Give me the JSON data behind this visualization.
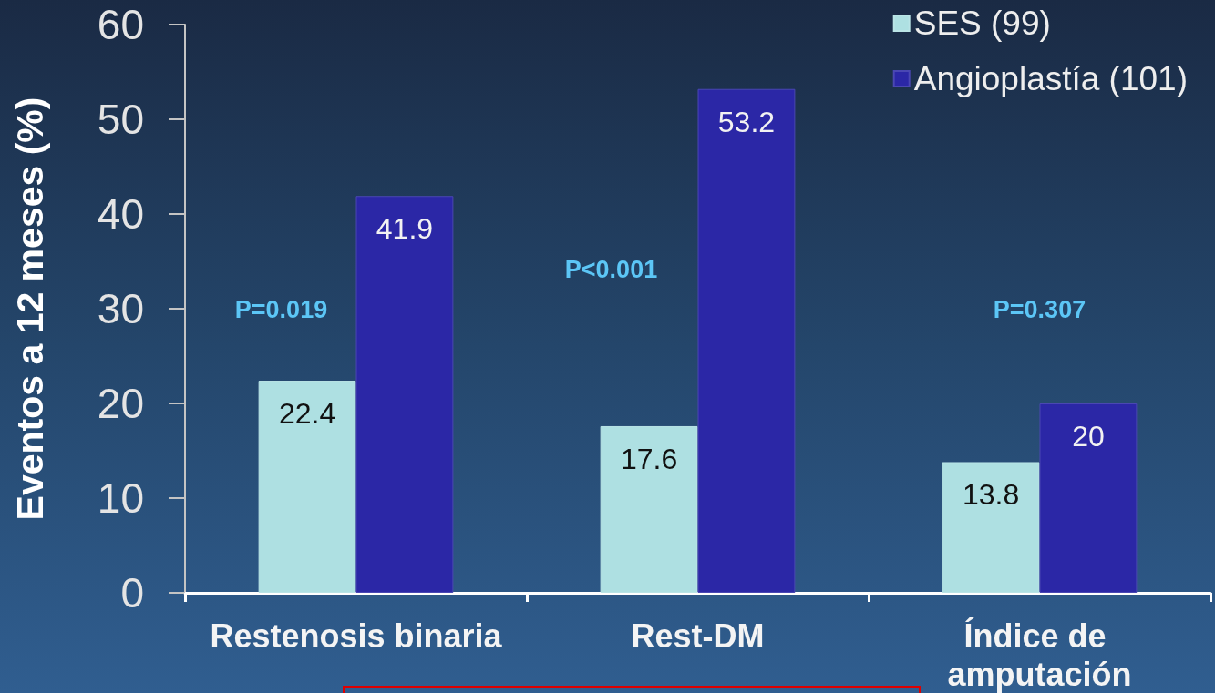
{
  "chart_data": {
    "type": "bar",
    "ylabel": "Eventos a 12 meses (%)",
    "categories": [
      "Restenosis binaria",
      "Rest-DM",
      "Índice de amputación"
    ],
    "series": [
      {
        "name": "SES (99)",
        "color": "#aee0e2",
        "values": [
          22.4,
          17.6,
          13.8
        ]
      },
      {
        "name": "Angioplastía (101)",
        "color": "#2b27a6",
        "values": [
          41.9,
          53.2,
          20
        ]
      }
    ],
    "ylim": [
      0,
      60
    ],
    "yticks": [
      0,
      10,
      20,
      30,
      40,
      50,
      60
    ],
    "grid": false,
    "legend": "top right",
    "data_labels": true,
    "annotations": [
      "P=0.019",
      "P<0.001",
      "P=0.307"
    ]
  }
}
